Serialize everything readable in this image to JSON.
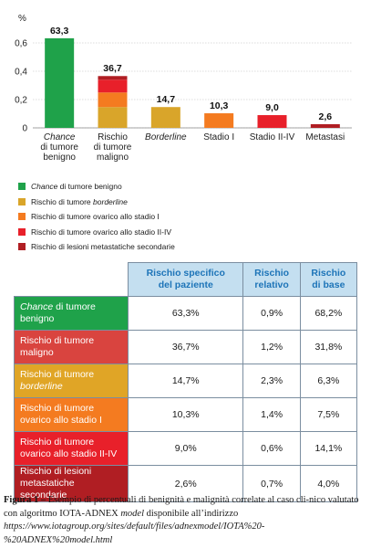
{
  "chart_data": {
    "type": "bar",
    "y_unit_label": "%",
    "ylim": [
      0,
      0.6
    ],
    "yticks": [
      "0",
      "0,2",
      "0,4",
      "0,6"
    ],
    "ytick_values": [
      0,
      0.2,
      0.4,
      0.6
    ],
    "categories": [
      {
        "lines": [
          "Chance",
          "di tumore",
          "benigno"
        ],
        "italic_first": true
      },
      {
        "lines": [
          "Rischio",
          "di tumore",
          "maligno"
        ],
        "italic_first": false
      },
      {
        "lines": [
          "Borderline"
        ],
        "italic_first": true
      },
      {
        "lines": [
          "Stadio I"
        ],
        "italic_first": false
      },
      {
        "lines": [
          "Stadio II-IV"
        ],
        "italic_first": false
      },
      {
        "lines": [
          "Metastasi"
        ],
        "italic_first": false
      }
    ],
    "value_labels": [
      "63,3",
      "36,7",
      "14,7",
      "10,3",
      "9,0",
      "2,6"
    ],
    "values": [
      0.633,
      0.367,
      0.147,
      0.103,
      0.09,
      0.026
    ],
    "stacked_malignant": [
      {
        "name": "Rischio di tumore borderline",
        "value": 0.147,
        "color": "#d9a52a"
      },
      {
        "name": "Rischio di tumore ovarico allo stadio I",
        "value": 0.103,
        "color": "#f47b20"
      },
      {
        "name": "Rischio di tumore ovarico allo stadio II-IV",
        "value": 0.09,
        "color": "#e8202a"
      },
      {
        "name": "Rischio di lesioni metastatiche secondarie",
        "value": 0.026,
        "color": "#b01e23"
      }
    ],
    "bar_colors": [
      "#1fa24a",
      null,
      "#d9a52a",
      "#f47b20",
      "#e8202a",
      "#b01e23"
    ]
  },
  "legend": [
    {
      "color": "#1fa24a",
      "italic": "Chance",
      "text": " di tumore benigno"
    },
    {
      "color": "#d9a52a",
      "italic": "",
      "text": "Rischio di tumore ",
      "italic_after": "borderline"
    },
    {
      "color": "#f47b20",
      "italic": "",
      "text": "Rischio di tumore ovarico allo stadio I"
    },
    {
      "color": "#e8202a",
      "italic": "",
      "text": "Rischio di tumore ovarico allo stadio II-IV"
    },
    {
      "color": "#b01e23",
      "italic": "",
      "text": "Rischio di lesioni metastatiche secondarie"
    }
  ],
  "table": {
    "headers": [
      "Rischio specifico del paziente",
      "Rischio relativo",
      "Rischio di base"
    ],
    "header_lines": [
      [
        "Rischio specifico",
        "del paziente"
      ],
      [
        "Rischio",
        "relativo"
      ],
      [
        "Rischio",
        "di base"
      ]
    ],
    "rows": [
      {
        "label_italic": "Chance",
        "label_lines": [
          " di tumore",
          "benigno"
        ],
        "color": "#1fa24a",
        "cells": [
          "63,3%",
          "0,9%",
          "68,2%"
        ]
      },
      {
        "label_italic": "",
        "label_lines": [
          "Rischio di tumore",
          "maligno"
        ],
        "color": "#d9443f",
        "cells": [
          "36,7%",
          "1,2%",
          "31,8%"
        ]
      },
      {
        "label_italic": "",
        "label_lines": [
          "Rischio di tumore",
          "borderline"
        ],
        "italic_second": true,
        "color": "#e0a526",
        "cells": [
          "14,7%",
          "2,3%",
          "6,3%"
        ]
      },
      {
        "label_italic": "",
        "label_lines": [
          "Rischio di tumore",
          "ovarico allo stadio I"
        ],
        "color": "#f47b20",
        "cells": [
          "10,3%",
          "1,4%",
          "7,5%"
        ]
      },
      {
        "label_italic": "",
        "label_lines": [
          "Rischio di tumore",
          "ovarico allo stadio II-IV"
        ],
        "color": "#e8202a",
        "cells": [
          "9,0%",
          "0,6%",
          "14,1%"
        ]
      },
      {
        "label_italic": "",
        "label_lines": [
          "Rischio di lesioni",
          "metastatiche secondarie"
        ],
        "color": "#b01e23",
        "cells": [
          "2,6%",
          "0,7%",
          "4,0%"
        ]
      }
    ]
  },
  "caption": {
    "bold": "Figura 1 –",
    "text1": " Esempio di percentuali di benignità e malignità correlate al caso cli-nico valutato con algoritmo IOTA-ADNEX ",
    "italic1": "model",
    "text2": " disponibile all’indirizzo ",
    "italic2": "https://www.iotagroup.org/sites/default/files/adnexmodel/IOTA%20-%20ADNEX%20model.html"
  }
}
